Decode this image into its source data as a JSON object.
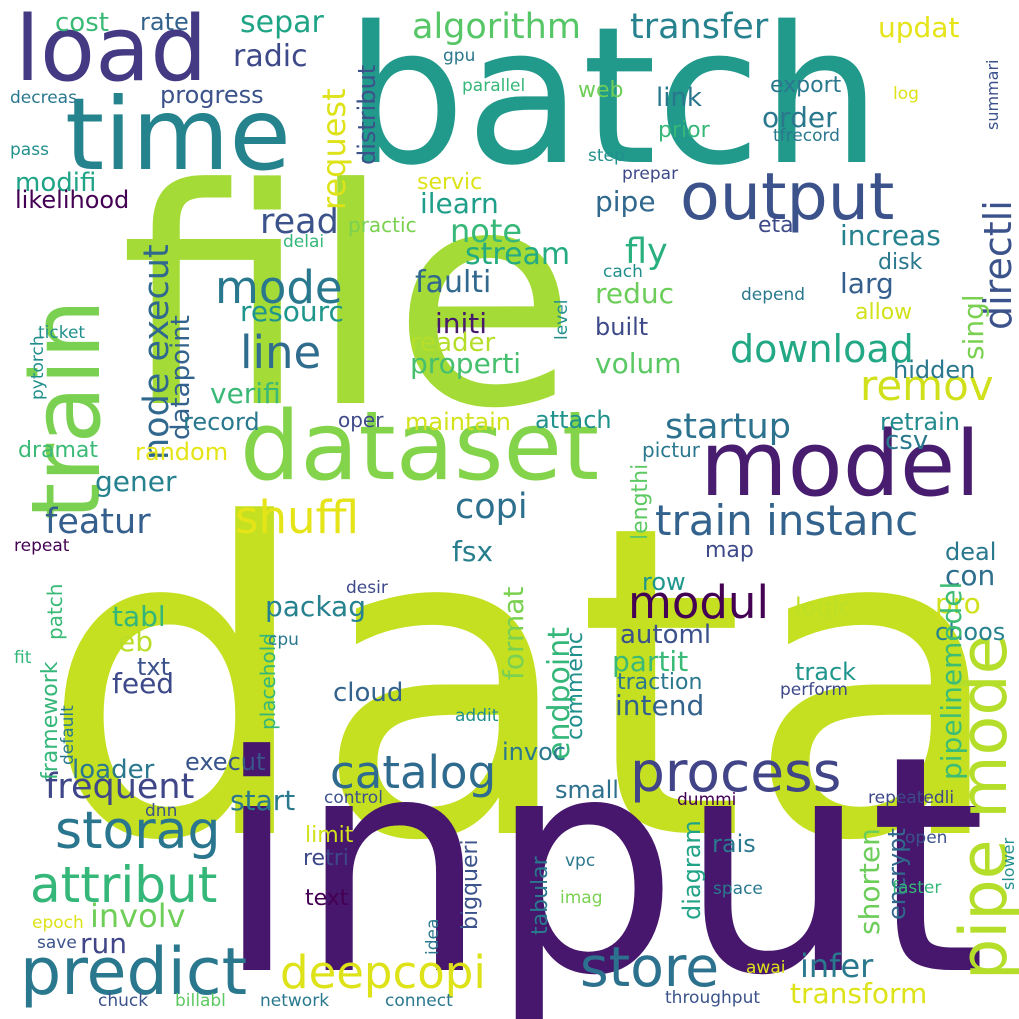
{
  "palette": {
    "indigo": "#3e2d74",
    "navy": "#3c4f8a",
    "blue": "#33638d",
    "teal": "#21908d",
    "sea": "#27a588",
    "green": "#4cc26c",
    "lime": "#a8db34",
    "yellow": "#dfe318",
    "dark": "#481f70"
  },
  "words": [
    {
      "text": "data",
      "color": "#c5e021"
    },
    {
      "text": "input",
      "color": "#46176c"
    },
    {
      "text": "file",
      "color": "#a5db36"
    },
    {
      "text": "batch",
      "color": "#21998b"
    },
    {
      "text": "time",
      "color": "#25838e"
    },
    {
      "text": "load",
      "color": "#443983"
    },
    {
      "text": "train",
      "color": "#7ad151"
    },
    {
      "text": "dataset",
      "color": "#84d44b"
    },
    {
      "text": "model",
      "color": "#481d6f"
    },
    {
      "text": "output",
      "color": "#3b528b"
    },
    {
      "text": "pipe mode",
      "color": "#b5de2b"
    },
    {
      "text": "predict",
      "color": "#2a788e"
    },
    {
      "text": "store",
      "color": "#2c728e"
    },
    {
      "text": "process",
      "color": "#414487"
    },
    {
      "text": "storag",
      "color": "#2a768e"
    },
    {
      "text": "attribut",
      "color": "#35b779"
    },
    {
      "text": "deepcopi",
      "color": "#dde318"
    },
    {
      "text": "catalog",
      "color": "#2f6b8e"
    },
    {
      "text": "train instanc",
      "color": "#33638d"
    },
    {
      "text": "modul",
      "color": "#440154"
    },
    {
      "text": "shuffl",
      "color": "#e5e419"
    },
    {
      "text": "mode",
      "color": "#2a788e"
    },
    {
      "text": "line",
      "color": "#2f6c8e"
    },
    {
      "text": "download",
      "color": "#22a884"
    },
    {
      "text": "remov",
      "color": "#d0e11c"
    },
    {
      "text": "directli",
      "color": "#3b528b"
    },
    {
      "text": "node execut",
      "color": "#31688e"
    },
    {
      "text": "algorithm",
      "color": "#56c667"
    },
    {
      "text": "transfer",
      "color": "#26828e"
    },
    {
      "text": "frequent",
      "color": "#3f4788"
    },
    {
      "text": "involv",
      "color": "#6ece58"
    },
    {
      "text": "infer",
      "color": "#2a788e"
    },
    {
      "text": "transform",
      "color": "#dde318"
    },
    {
      "text": "featur",
      "color": "#355f8d"
    },
    {
      "text": "copi",
      "color": "#2d708e"
    },
    {
      "text": "note",
      "color": "#37b878"
    },
    {
      "text": "fly",
      "color": "#2ab07f"
    },
    {
      "text": "read",
      "color": "#3b528b"
    },
    {
      "text": "startup",
      "color": "#2c728e"
    },
    {
      "text": "stream",
      "color": "#25ab82"
    },
    {
      "text": "faulti",
      "color": "#31688e"
    },
    {
      "text": "ilearn",
      "color": "#1f9e89"
    },
    {
      "text": "initi",
      "color": "#481a6c"
    },
    {
      "text": "reader",
      "color": "#b5de2b"
    },
    {
      "text": "properti",
      "color": "#46c06f"
    },
    {
      "text": "verifi",
      "color": "#3aba76"
    },
    {
      "text": "resourc",
      "color": "#1f968b"
    },
    {
      "text": "packag",
      "color": "#26828e"
    },
    {
      "text": "pipe",
      "color": "#31688e"
    },
    {
      "text": "increas",
      "color": "#26828e"
    },
    {
      "text": "reduc",
      "color": "#6ccd5a"
    },
    {
      "text": "larg",
      "color": "#355f8d"
    },
    {
      "text": "singl",
      "color": "#7ad151"
    },
    {
      "text": "volum",
      "color": "#5ac864"
    },
    {
      "text": "built",
      "color": "#3e4989"
    },
    {
      "text": "partit",
      "color": "#3aba76"
    },
    {
      "text": "intend",
      "color": "#33638d"
    },
    {
      "text": "automl",
      "color": "#3b528b"
    },
    {
      "text": "feed",
      "color": "#3e4989"
    },
    {
      "text": "tabl",
      "color": "#34b679"
    },
    {
      "text": "eb",
      "color": "#bade28"
    },
    {
      "text": "txt",
      "color": "#3b528b"
    },
    {
      "text": "loader",
      "color": "#2a788e"
    },
    {
      "text": "start",
      "color": "#2a788e"
    },
    {
      "text": "run",
      "color": "#404688"
    },
    {
      "text": "fsx",
      "color": "#277f8e"
    },
    {
      "text": "con",
      "color": "#2e6f8e"
    },
    {
      "text": "pro",
      "color": "#d0e11c"
    },
    {
      "text": "map",
      "color": "#3e4989"
    },
    {
      "text": "deal",
      "color": "#2a788e"
    },
    {
      "text": "row",
      "color": "#1f968b"
    },
    {
      "text": "cloud",
      "color": "#33638d"
    },
    {
      "text": "logic",
      "color": "#bddf26"
    },
    {
      "text": "choos",
      "color": "#26828e"
    },
    {
      "text": "track",
      "color": "#1f958b"
    },
    {
      "text": "traction",
      "color": "#2a788e"
    },
    {
      "text": "endpoint",
      "color": "#35b779"
    },
    {
      "text": "format",
      "color": "#7ad151"
    },
    {
      "text": "commenc",
      "color": "#21908d"
    },
    {
      "text": "invoc",
      "color": "#2a788e"
    },
    {
      "text": "small",
      "color": "#2d708e"
    },
    {
      "text": "execut",
      "color": "#39568c"
    },
    {
      "text": "rais",
      "color": "#2a788e"
    },
    {
      "text": "diagram",
      "color": "#20a386"
    },
    {
      "text": "shorten",
      "color": "#6ccd5a"
    },
    {
      "text": "encrypt",
      "color": "#31688e"
    },
    {
      "text": "pipelinemodel",
      "color": "#3dbc74"
    },
    {
      "text": "hidden",
      "color": "#2a788e"
    },
    {
      "text": "retrain",
      "color": "#238a8d"
    },
    {
      "text": "csv",
      "color": "#2a788e"
    },
    {
      "text": "gener",
      "color": "#26828e"
    },
    {
      "text": "datapoint",
      "color": "#33638d"
    },
    {
      "text": "dramat",
      "color": "#3aba76"
    },
    {
      "text": "random",
      "color": "#e5e419"
    },
    {
      "text": "record",
      "color": "#2a788e"
    },
    {
      "text": "maintain",
      "color": "#d2e21b"
    },
    {
      "text": "attach",
      "color": "#20928c"
    },
    {
      "text": "lengthi",
      "color": "#5ec962"
    },
    {
      "text": "pictur",
      "color": "#2a788e"
    },
    {
      "text": "oper",
      "color": "#3e4989"
    },
    {
      "text": "request",
      "color": "#dde318"
    },
    {
      "text": "distribut",
      "color": "#3b528b"
    },
    {
      "text": "separ",
      "color": "#20a486"
    },
    {
      "text": "radic",
      "color": "#3e4989"
    },
    {
      "text": "progress",
      "color": "#3b528b"
    },
    {
      "text": "cost",
      "color": "#3aba76"
    },
    {
      "text": "rate",
      "color": "#33638d"
    },
    {
      "text": "modifi",
      "color": "#20a386"
    },
    {
      "text": "likelihood",
      "color": "#440154"
    },
    {
      "text": "decreas",
      "color": "#2a788e"
    },
    {
      "text": "pass",
      "color": "#21908d"
    },
    {
      "text": "updat",
      "color": "#e5e419"
    },
    {
      "text": "export",
      "color": "#2a788e"
    },
    {
      "text": "log",
      "color": "#dde318"
    },
    {
      "text": "summari",
      "color": "#3b528b"
    },
    {
      "text": "tfrecord",
      "color": "#2a788e"
    },
    {
      "text": "gpu",
      "color": "#2a788e"
    },
    {
      "text": "parallel",
      "color": "#35b779"
    },
    {
      "text": "web",
      "color": "#6ece58"
    },
    {
      "text": "link",
      "color": "#2a788e"
    },
    {
      "text": "order",
      "color": "#2a788e"
    },
    {
      "text": "prior",
      "color": "#35b779"
    },
    {
      "text": "step",
      "color": "#21908d"
    },
    {
      "text": "prepar",
      "color": "#3e4989"
    },
    {
      "text": "servic",
      "color": "#dde318"
    },
    {
      "text": "practic",
      "color": "#7ad151"
    },
    {
      "text": "delai",
      "color": "#35b779"
    },
    {
      "text": "eta",
      "color": "#3e4989"
    },
    {
      "text": "disk",
      "color": "#2a788e"
    },
    {
      "text": "cach",
      "color": "#21908d"
    },
    {
      "text": "depend",
      "color": "#2a788e"
    },
    {
      "text": "allow",
      "color": "#d2e21b"
    },
    {
      "text": "level",
      "color": "#21908d"
    },
    {
      "text": "ticket",
      "color": "#21908d"
    },
    {
      "text": "pytorch",
      "color": "#21908d"
    },
    {
      "text": "repeat",
      "color": "#440154"
    },
    {
      "text": "patch",
      "color": "#3aba76"
    },
    {
      "text": "fit",
      "color": "#35b779"
    },
    {
      "text": "framework",
      "color": "#35b779"
    },
    {
      "text": "default",
      "color": "#2a788e"
    },
    {
      "text": "placehold",
      "color": "#35b779"
    },
    {
      "text": "cpu",
      "color": "#2a788e"
    },
    {
      "text": "desir",
      "color": "#3e4989"
    },
    {
      "text": "addit",
      "color": "#21908d"
    },
    {
      "text": "perform",
      "color": "#3e4989"
    },
    {
      "text": "dummi",
      "color": "#440154"
    },
    {
      "text": "control",
      "color": "#3b528b"
    },
    {
      "text": "dnn",
      "color": "#3b528b"
    },
    {
      "text": "repeatedli",
      "color": "#3e4989"
    },
    {
      "text": "limit",
      "color": "#d2e21b"
    },
    {
      "text": "retri",
      "color": "#3e4989"
    },
    {
      "text": "text",
      "color": "#440154"
    },
    {
      "text": "vpc",
      "color": "#2a788e"
    },
    {
      "text": "imag",
      "color": "#7ad151"
    },
    {
      "text": "tabular",
      "color": "#2a788e"
    },
    {
      "text": "bigqueri",
      "color": "#3b528b"
    },
    {
      "text": "idea",
      "color": "#2a788e"
    },
    {
      "text": "space",
      "color": "#2a788e"
    },
    {
      "text": "open",
      "color": "#3b528b"
    },
    {
      "text": "faster",
      "color": "#35b779"
    },
    {
      "text": "slower",
      "color": "#21908d"
    },
    {
      "text": "epoch",
      "color": "#dde318"
    },
    {
      "text": "save",
      "color": "#3b528b"
    },
    {
      "text": "chuck",
      "color": "#3b528b"
    },
    {
      "text": "billabl",
      "color": "#5ec962"
    },
    {
      "text": "network",
      "color": "#2a788e"
    },
    {
      "text": "connect",
      "color": "#2a788e"
    },
    {
      "text": "awai",
      "color": "#dde318"
    },
    {
      "text": "throughput",
      "color": "#3b528b"
    }
  ]
}
